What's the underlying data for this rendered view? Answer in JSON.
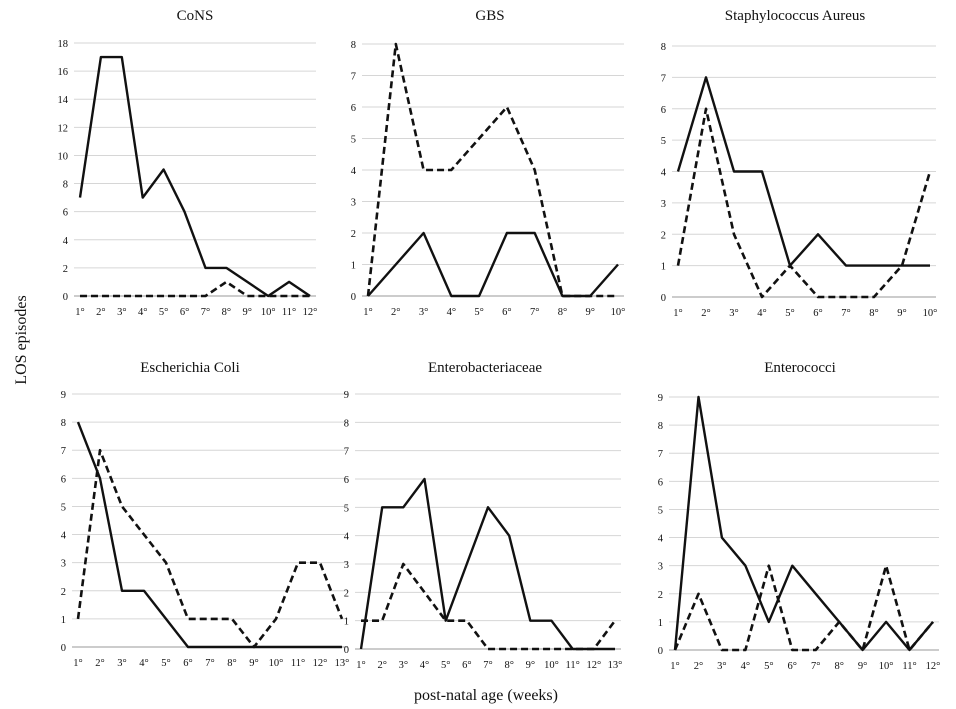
{
  "ylabel": "LOS episodes",
  "xlabel": "post-natal age (weeks)",
  "chart_data": [
    {
      "type": "line",
      "title": "CoNS",
      "categories": [
        "1°",
        "2°",
        "3°",
        "4°",
        "5°",
        "6°",
        "7°",
        "8°",
        "9°",
        "10°",
        "11°",
        "12°"
      ],
      "yticks": [
        0,
        2,
        4,
        6,
        8,
        10,
        12,
        14,
        16,
        18
      ],
      "ylim": [
        0,
        18
      ],
      "series": [
        {
          "style": "solid",
          "values": [
            7,
            17,
            17,
            7,
            9,
            6,
            2,
            2,
            1,
            0,
            1,
            0
          ]
        },
        {
          "style": "dashed",
          "values": [
            0,
            0,
            0,
            0,
            0,
            0,
            0,
            1,
            0,
            0,
            0,
            0
          ]
        }
      ]
    },
    {
      "type": "line",
      "title": "GBS",
      "categories": [
        "1°",
        "2°",
        "3°",
        "4°",
        "5°",
        "6°",
        "7°",
        "8°",
        "9°",
        "10°"
      ],
      "yticks": [
        0,
        1,
        2,
        3,
        4,
        5,
        6,
        7,
        8
      ],
      "ylim": [
        0,
        8
      ],
      "series": [
        {
          "style": "solid",
          "values": [
            0,
            1,
            2,
            0,
            0,
            2,
            2,
            0,
            0,
            1
          ]
        },
        {
          "style": "dashed",
          "values": [
            0,
            8,
            4,
            4,
            5,
            6,
            4,
            0,
            0,
            0
          ]
        }
      ]
    },
    {
      "type": "line",
      "title": "Staphylococcus Aureus",
      "categories": [
        "1°",
        "2°",
        "3°",
        "4°",
        "5°",
        "6°",
        "7°",
        "8°",
        "9°",
        "10°"
      ],
      "yticks": [
        0,
        1,
        2,
        3,
        4,
        5,
        6,
        7,
        8
      ],
      "ylim": [
        0,
        8
      ],
      "series": [
        {
          "style": "solid",
          "values": [
            4,
            7,
            4,
            4,
            1,
            2,
            1,
            1,
            1,
            1
          ]
        },
        {
          "style": "dashed",
          "values": [
            1,
            6,
            2,
            0,
            1,
            0,
            0,
            0,
            1,
            4
          ]
        }
      ]
    },
    {
      "type": "line",
      "title": "Escherichia Coli",
      "categories": [
        "1°",
        "2°",
        "3°",
        "4°",
        "5°",
        "6°",
        "7°",
        "8°",
        "9°",
        "10°",
        "11°",
        "12°",
        "13°"
      ],
      "yticks": [
        0,
        1,
        2,
        3,
        4,
        5,
        6,
        7,
        8,
        9
      ],
      "ylim": [
        0,
        9
      ],
      "series": [
        {
          "style": "solid",
          "values": [
            8,
            6,
            2,
            2,
            1,
            0,
            0,
            0,
            0,
            0,
            0,
            0,
            0
          ]
        },
        {
          "style": "dashed",
          "values": [
            1,
            7,
            5,
            4,
            3,
            1,
            1,
            1,
            0,
            1,
            3,
            3,
            1
          ]
        }
      ]
    },
    {
      "type": "line",
      "title": "Enterobacteriaceae",
      "categories": [
        "1°",
        "2°",
        "3°",
        "4°",
        "5°",
        "6°",
        "7°",
        "8°",
        "9°",
        "10°",
        "11°",
        "12°",
        "13°"
      ],
      "yticks": [
        0,
        1,
        2,
        3,
        4,
        5,
        6,
        7,
        8,
        9
      ],
      "ylim": [
        0,
        9
      ],
      "series": [
        {
          "style": "solid",
          "values": [
            0,
            5,
            5,
            6,
            1,
            3,
            5,
            4,
            1,
            1,
            0,
            0,
            0
          ]
        },
        {
          "style": "dashed",
          "values": [
            1,
            1,
            3,
            2,
            1,
            1,
            0,
            0,
            0,
            0,
            0,
            0,
            1
          ]
        }
      ]
    },
    {
      "type": "line",
      "title": "Enterococci",
      "categories": [
        "1°",
        "2°",
        "3°",
        "4°",
        "5°",
        "6°",
        "7°",
        "8°",
        "9°",
        "10°",
        "11°",
        "12°"
      ],
      "yticks": [
        0,
        1,
        2,
        3,
        4,
        5,
        6,
        7,
        8,
        9
      ],
      "ylim": [
        0,
        9
      ],
      "series": [
        {
          "style": "solid",
          "values": [
            0,
            9,
            4,
            3,
            1,
            3,
            2,
            1,
            0,
            1,
            0,
            1
          ]
        },
        {
          "style": "dashed",
          "values": [
            0,
            2,
            0,
            0,
            3,
            0,
            0,
            1,
            0,
            3,
            0,
            1
          ]
        }
      ]
    }
  ]
}
